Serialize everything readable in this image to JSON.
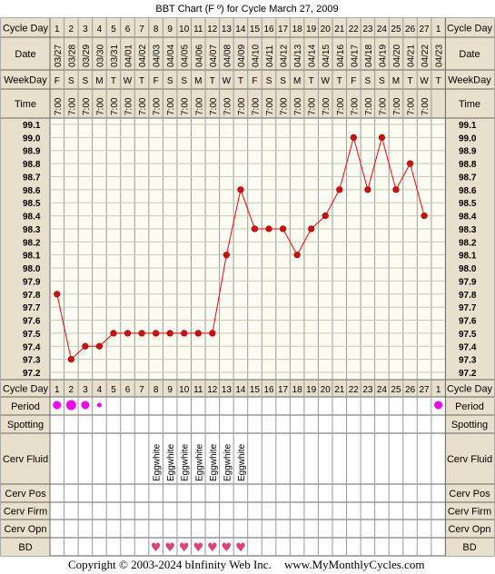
{
  "chart_data": {
    "type": "line",
    "title": "BBT Chart (F º) for Cycle March 27, 2009",
    "ylabel": "",
    "xlabel": "",
    "ylim": [
      97.2,
      99.1
    ],
    "y_ticks": [
      "99.1",
      "99.0",
      "98.9",
      "98.8",
      "98.7",
      "98.6",
      "98.5",
      "98.4",
      "98.3",
      "98.2",
      "98.1",
      "98.0",
      "97.9",
      "97.8",
      "97.7",
      "97.6",
      "97.5",
      "97.4",
      "97.3",
      "97.2"
    ],
    "row_labels": {
      "cycle_day": "Cycle Day",
      "date": "Date",
      "weekday": "WeekDay",
      "time": "Time",
      "period": "Period",
      "spotting": "Spotting",
      "cerv_fluid": "Cerv Fluid",
      "cerv_pos": "Cerv Pos",
      "cerv_firm": "Cerv Firm",
      "cerv_opn": "Cerv Opn",
      "bd": "BD"
    },
    "days": [
      "1",
      "2",
      "3",
      "4",
      "5",
      "6",
      "7",
      "8",
      "9",
      "10",
      "11",
      "12",
      "13",
      "14",
      "15",
      "16",
      "17",
      "18",
      "19",
      "20",
      "21",
      "22",
      "23",
      "24",
      "25",
      "26",
      "27",
      "1"
    ],
    "dates": [
      "03/27",
      "03/28",
      "03/29",
      "03/30",
      "03/31",
      "04/01",
      "04/02",
      "04/03",
      "04/04",
      "04/05",
      "04/06",
      "04/07",
      "04/08",
      "04/09",
      "04/10",
      "04/11",
      "04/12",
      "04/13",
      "04/14",
      "04/15",
      "04/16",
      "04/17",
      "04/18",
      "04/19",
      "04/20",
      "04/21",
      "04/22",
      "04/23"
    ],
    "weekdays": [
      "F",
      "S",
      "S",
      "M",
      "T",
      "W",
      "T",
      "F",
      "S",
      "S",
      "M",
      "T",
      "W",
      "T",
      "F",
      "S",
      "S",
      "M",
      "T",
      "W",
      "T",
      "F",
      "S",
      "S",
      "M",
      "T",
      "W",
      "T"
    ],
    "times": [
      "7:00",
      "7:00",
      "7:00",
      "7:00",
      "7:00",
      "7:00",
      "7:00",
      "7:00",
      "7:00",
      "7:00",
      "7:00",
      "7:00",
      "7:00",
      "7:00",
      "7:00",
      "7:00",
      "7:00",
      "7:00",
      "7:00",
      "7:00",
      "7:00",
      "7:00",
      "7:00",
      "7:00",
      "7:00",
      "7:00",
      "7:00",
      ""
    ],
    "series": [
      {
        "values": [
          97.8,
          97.3,
          97.4,
          97.4,
          97.5,
          97.5,
          97.5,
          97.5,
          97.5,
          97.5,
          97.5,
          97.5,
          98.1,
          98.6,
          98.3,
          98.3,
          98.3,
          98.1,
          98.3,
          98.4,
          98.6,
          99.0,
          98.6,
          99.0,
          98.6,
          98.8,
          98.4,
          null
        ],
        "color": "#ff0000"
      }
    ],
    "period": [
      "medium",
      "heavy",
      "medium",
      "light",
      "",
      "",
      "",
      "",
      "",
      "",
      "",
      "",
      "",
      "",
      "",
      "",
      "",
      "",
      "",
      "",
      "",
      "",
      "",
      "",
      "",
      "",
      "",
      "medium"
    ],
    "cerv_fluid": [
      "",
      "",
      "",
      "",
      "",
      "",
      "",
      "Eggwhite",
      "Eggwhite",
      "Eggwhite",
      "Eggwhite",
      "Eggwhite",
      "Eggwhite",
      "Eggwhite",
      "",
      "",
      "",
      "",
      "",
      "",
      "",
      "",
      "",
      "",
      "",
      "",
      "",
      ""
    ],
    "bd": [
      "",
      "",
      "",
      "",
      "",
      "",
      "",
      "heart",
      "heart",
      "heart",
      "heart",
      "heart",
      "heart",
      "heart",
      "",
      "",
      "",
      "",
      "",
      "",
      "",
      "",
      "",
      "",
      "",
      "",
      "",
      ""
    ],
    "colors": {
      "header_bg": "#e8e0cc",
      "grid_bg": "#fcfcf2",
      "grid_line": "#c8c8b4",
      "line": "#ff0000",
      "marker_fill": "#cc1111",
      "period": "#ee00ee",
      "heart": "#e0407a"
    }
  },
  "footer": {
    "copyright": "Copyright © 2003-2024 bInfinity Web Inc.",
    "site": "www.MyMonthlyCycles.com"
  }
}
